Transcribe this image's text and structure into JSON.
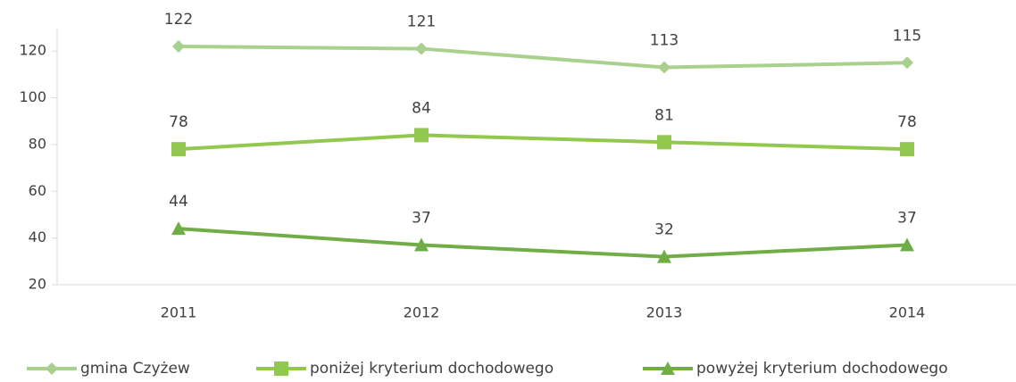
{
  "chart_data": {
    "type": "line",
    "categories": [
      "2011",
      "2012",
      "2013",
      "2014"
    ],
    "series": [
      {
        "name": "gmina Czyżew",
        "color": "#a9d18e",
        "marker": "diamond",
        "values": [
          122,
          121,
          113,
          115
        ]
      },
      {
        "name": "poniżej kryterium dochodowego",
        "color": "#92c850",
        "marker": "square",
        "values": [
          78,
          84,
          81,
          78
        ]
      },
      {
        "name": "powyżej kryterium dochodowego",
        "color": "#70ad47",
        "marker": "triangle",
        "values": [
          44,
          37,
          32,
          37
        ]
      }
    ],
    "ylim": [
      20,
      130
    ],
    "yticks": [
      20,
      40,
      60,
      80,
      100,
      120
    ],
    "grid": false,
    "legend": "bottom"
  }
}
